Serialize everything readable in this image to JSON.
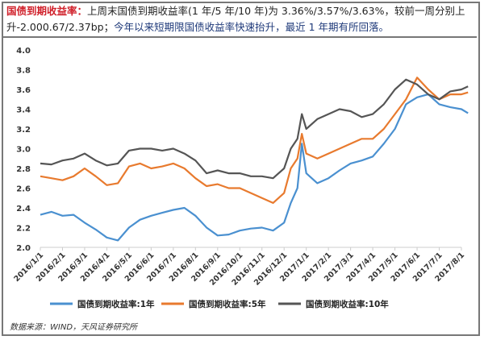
{
  "header": {
    "label": "国债到期收益率：",
    "text1": "上周末国债到期收益率(1 年/5 年/10 年)为 3.36%/3.57%/3.63%，较前一周分别上升-2.000.67/2.37bp；",
    "text2": "今年以来短期限国债收益率快速抬升，最近 1 年期有所回落。"
  },
  "source": "数据来源：WIND，天风证券研究所",
  "chart_data": {
    "type": "line",
    "title": "",
    "xlabel": "",
    "ylabel": "",
    "ylim": [
      2.0,
      4.0
    ],
    "yticks": [
      "2.0",
      "2.2",
      "2.4",
      "2.6",
      "2.8",
      "3.0",
      "3.2",
      "3.4",
      "3.6",
      "3.8",
      "4.0"
    ],
    "xticks": [
      "2016/1/1",
      "2016/2/1",
      "2016/3/1",
      "2016/4/1",
      "2016/5/1",
      "2016/6/1",
      "2016/7/1",
      "2016/8/1",
      "2016/9/1",
      "2016/10/1",
      "2016/11/1",
      "2016/12/1",
      "2017/1/1",
      "2017/2/1",
      "2017/3/1",
      "2017/4/1",
      "2017/5/1",
      "2017/6/1",
      "2017/7/1",
      "2017/8/1"
    ],
    "grid": false,
    "legend_position": "bottom",
    "x": [
      0,
      0.5,
      1,
      1.5,
      2,
      2.5,
      3,
      3.5,
      4,
      4.5,
      5,
      5.5,
      6,
      6.5,
      7,
      7.5,
      8,
      8.5,
      9,
      9.5,
      10,
      10.5,
      11,
      11.3,
      11.6,
      11.8,
      12,
      12.5,
      13,
      13.5,
      14,
      14.5,
      15,
      15.5,
      16,
      16.5,
      17,
      17.5,
      18,
      18.5,
      19,
      19.3
    ],
    "series": [
      {
        "name": "国债到期收益率:1年",
        "color": "#4a90d0",
        "values": [
          2.33,
          2.36,
          2.32,
          2.33,
          2.25,
          2.18,
          2.1,
          2.07,
          2.2,
          2.28,
          2.32,
          2.35,
          2.38,
          2.4,
          2.32,
          2.2,
          2.12,
          2.13,
          2.17,
          2.19,
          2.2,
          2.17,
          2.25,
          2.45,
          2.6,
          3.05,
          2.75,
          2.65,
          2.7,
          2.78,
          2.85,
          2.88,
          2.92,
          3.05,
          3.2,
          3.45,
          3.52,
          3.55,
          3.45,
          3.42,
          3.4,
          3.36
        ]
      },
      {
        "name": "国债到期收益率:5年",
        "color": "#e87a2e",
        "values": [
          2.72,
          2.7,
          2.68,
          2.72,
          2.8,
          2.72,
          2.63,
          2.65,
          2.82,
          2.85,
          2.8,
          2.82,
          2.85,
          2.8,
          2.7,
          2.62,
          2.64,
          2.6,
          2.6,
          2.55,
          2.5,
          2.45,
          2.55,
          2.8,
          2.9,
          3.15,
          2.95,
          2.9,
          2.95,
          3.0,
          3.05,
          3.1,
          3.1,
          3.2,
          3.35,
          3.5,
          3.72,
          3.6,
          3.5,
          3.55,
          3.55,
          3.57
        ]
      },
      {
        "name": "国债到期收益率:10年",
        "color": "#555555",
        "values": [
          2.85,
          2.84,
          2.88,
          2.9,
          2.95,
          2.88,
          2.83,
          2.85,
          2.98,
          3.0,
          3.0,
          2.98,
          3.0,
          2.95,
          2.88,
          2.75,
          2.78,
          2.75,
          2.75,
          2.72,
          2.72,
          2.7,
          2.8,
          3.0,
          3.1,
          3.35,
          3.2,
          3.3,
          3.35,
          3.4,
          3.38,
          3.32,
          3.35,
          3.45,
          3.6,
          3.7,
          3.65,
          3.55,
          3.5,
          3.58,
          3.6,
          3.63
        ]
      }
    ]
  }
}
